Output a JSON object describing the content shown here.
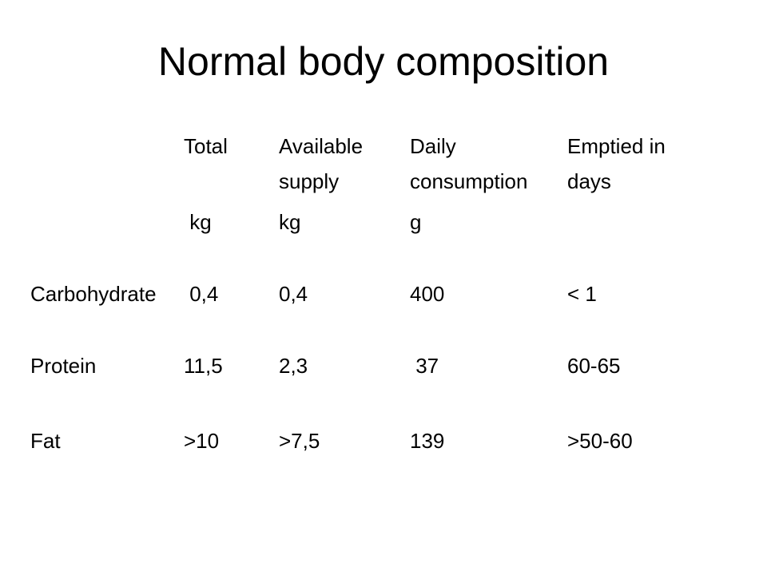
{
  "slide": {
    "title": "Normal body composition"
  },
  "table": {
    "headers": [
      [
        "Total",
        "Available",
        "Daily",
        "Emptied in"
      ],
      [
        "",
        "supply",
        "consumption",
        "days"
      ],
      [
        " kg",
        "kg",
        "g",
        ""
      ]
    ],
    "rows": [
      [
        "Carbohydrate",
        " 0,4",
        "0,4",
        "400",
        "< 1"
      ],
      [
        "Protein",
        "11,5",
        "2,3",
        " 37",
        "60-65"
      ],
      [
        "Fat",
        ">10",
        ">7,5",
        "139",
        ">50-60"
      ]
    ]
  }
}
